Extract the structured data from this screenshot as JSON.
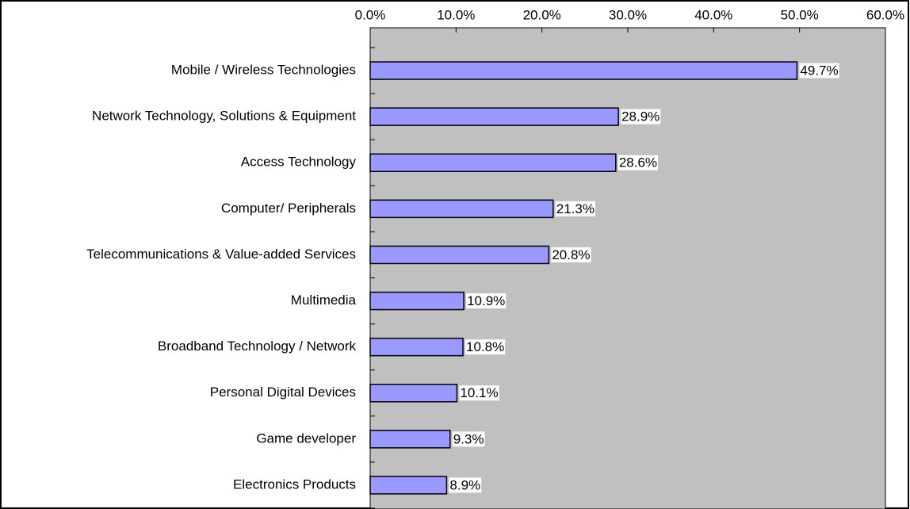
{
  "chart_data": {
    "type": "barh",
    "categories": [
      "Mobile / Wireless Technologies",
      "Network Technology, Solutions & Equipment",
      "Access Technology",
      "Computer/ Peripherals",
      "Telecommunications &  Value-added Services",
      "Multimedia",
      "Broadband Technology / Network",
      "Personal Digital Devices",
      "Game developer",
      "Electronics Products"
    ],
    "values": [
      49.7,
      28.9,
      28.6,
      21.3,
      20.8,
      10.9,
      10.8,
      10.1,
      9.3,
      8.9
    ],
    "value_labels": [
      "49.7%",
      "28.9%",
      "28.6%",
      "21.3%",
      "20.8%",
      "10.9%",
      "10.8%",
      "10.1%",
      "9.3%",
      "8.9%"
    ],
    "color": "#9999ff",
    "xlim": [
      0,
      60
    ],
    "xticks": [
      {
        "value": 0,
        "label": "0.0%"
      },
      {
        "value": 10,
        "label": "10.0%"
      },
      {
        "value": 20,
        "label": "20.0%"
      },
      {
        "value": 30,
        "label": "30.0%"
      },
      {
        "value": 40,
        "label": "40.0%"
      },
      {
        "value": 50,
        "label": "50.0%"
      },
      {
        "value": 60,
        "label": "60.0%"
      }
    ],
    "grid": false
  }
}
